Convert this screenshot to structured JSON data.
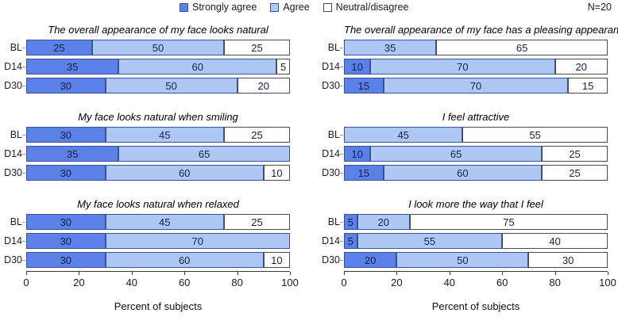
{
  "header": {
    "n_label": "N=20",
    "legend": [
      {
        "label": "Strongly agree",
        "color": "#5b80e6",
        "border": "#37529f"
      },
      {
        "label": "Agree",
        "color": "#aec7f3",
        "border": "#37529f"
      },
      {
        "label": "Neutral/disagree",
        "color": "#ffffff",
        "border": "#4b4b4b"
      }
    ]
  },
  "axis": {
    "ticks": [
      0,
      20,
      40,
      60,
      80,
      100
    ],
    "xlim": [
      0,
      100
    ],
    "xlabel": "Percent of subjects"
  },
  "chart_data": [
    {
      "type": "bar",
      "orientation": "horizontal",
      "stacked": true,
      "title": "The overall appearance of my face looks natural",
      "categories": [
        "BL",
        "D14",
        "D30"
      ],
      "series": [
        {
          "name": "Strongly agree",
          "values": [
            25,
            35,
            30
          ]
        },
        {
          "name": "Agree",
          "values": [
            50,
            60,
            50
          ]
        },
        {
          "name": "Neutral/disagree",
          "values": [
            25,
            5,
            20
          ]
        }
      ],
      "xlim": [
        0,
        100
      ]
    },
    {
      "type": "bar",
      "orientation": "horizontal",
      "stacked": true,
      "title": "The overall appearance of my face has a pleasing appearance",
      "categories": [
        "BL",
        "D14",
        "D30"
      ],
      "series": [
        {
          "name": "Strongly agree",
          "values": [
            0,
            10,
            15
          ]
        },
        {
          "name": "Agree",
          "values": [
            35,
            70,
            70
          ]
        },
        {
          "name": "Neutral/disagree",
          "values": [
            65,
            20,
            15
          ]
        }
      ],
      "xlim": [
        0,
        100
      ]
    },
    {
      "type": "bar",
      "orientation": "horizontal",
      "stacked": true,
      "title": "My face looks natural when smiling",
      "categories": [
        "BL",
        "D14",
        "D30"
      ],
      "series": [
        {
          "name": "Strongly agree",
          "values": [
            30,
            35,
            30
          ]
        },
        {
          "name": "Agree",
          "values": [
            45,
            65,
            60
          ]
        },
        {
          "name": "Neutral/disagree",
          "values": [
            25,
            0,
            10
          ]
        }
      ],
      "xlim": [
        0,
        100
      ]
    },
    {
      "type": "bar",
      "orientation": "horizontal",
      "stacked": true,
      "title": "I feel attractive",
      "categories": [
        "BL",
        "D14",
        "D30"
      ],
      "series": [
        {
          "name": "Strongly agree",
          "values": [
            0,
            10,
            15
          ]
        },
        {
          "name": "Agree",
          "values": [
            45,
            65,
            60
          ]
        },
        {
          "name": "Neutral/disagree",
          "values": [
            55,
            25,
            25
          ]
        }
      ],
      "xlim": [
        0,
        100
      ]
    },
    {
      "type": "bar",
      "orientation": "horizontal",
      "stacked": true,
      "title": "My face looks natural when relaxed",
      "categories": [
        "BL",
        "D14",
        "D30"
      ],
      "series": [
        {
          "name": "Strongly agree",
          "values": [
            30,
            30,
            30
          ]
        },
        {
          "name": "Agree",
          "values": [
            45,
            70,
            60
          ]
        },
        {
          "name": "Neutral/disagree",
          "values": [
            25,
            0,
            10
          ]
        }
      ],
      "xlim": [
        0,
        100
      ]
    },
    {
      "type": "bar",
      "orientation": "horizontal",
      "stacked": true,
      "title": "I look more the way that I feel",
      "categories": [
        "BL",
        "D14",
        "D30"
      ],
      "series": [
        {
          "name": "Strongly agree",
          "values": [
            5,
            5,
            20
          ]
        },
        {
          "name": "Agree",
          "values": [
            20,
            55,
            50
          ]
        },
        {
          "name": "Neutral/disagree",
          "values": [
            75,
            40,
            30
          ]
        }
      ],
      "xlim": [
        0,
        100
      ]
    }
  ]
}
